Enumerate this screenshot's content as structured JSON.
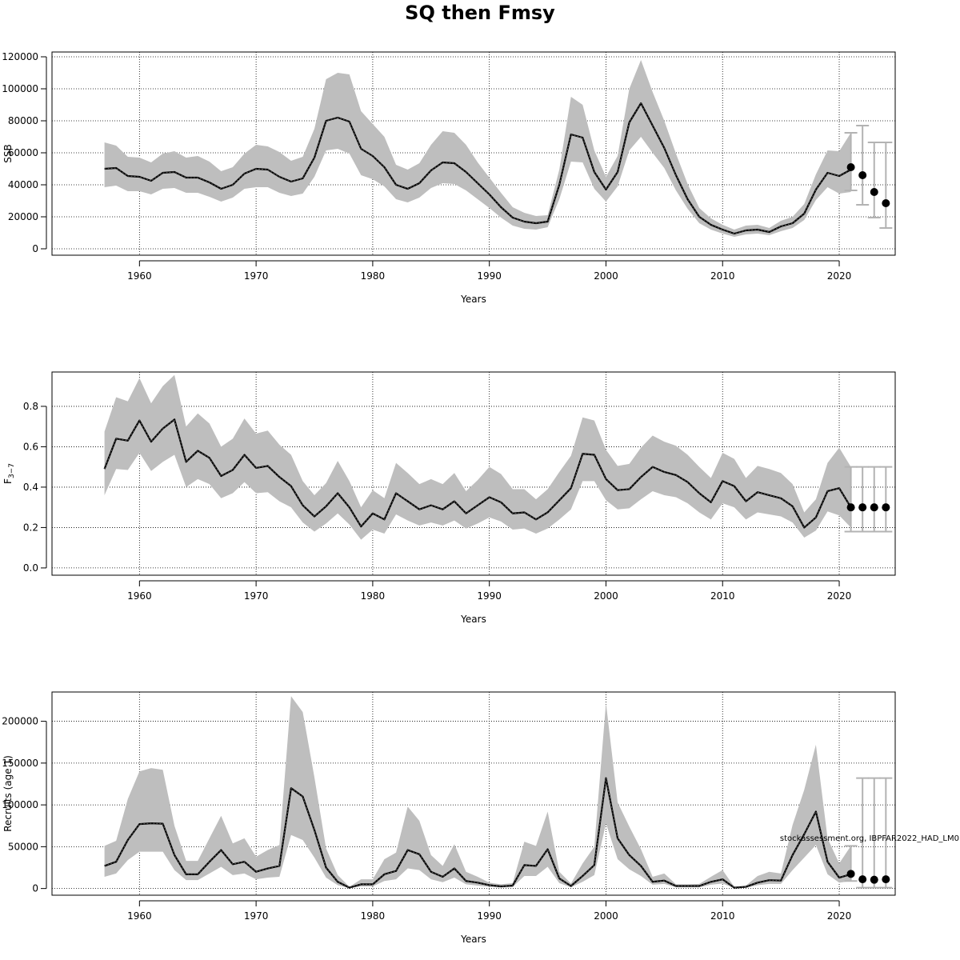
{
  "title": "SQ then Fmsy",
  "credit": "stockassessment.org, IBPFAR2022_HAD_LM0",
  "colors": {
    "band": "#bebebe",
    "line": "#000000",
    "grid": "#000000",
    "errorbar": "#b3b3b3",
    "point": "#000000"
  },
  "chart_data": [
    {
      "type": "line",
      "title": "",
      "xlabel": "Years",
      "ylabel": "SSB",
      "xlim": [
        1952.5,
        2024.8
      ],
      "ylim": [
        -4000,
        123000
      ],
      "x_ticks": [
        1960,
        1970,
        1980,
        1990,
        2000,
        2010,
        2020
      ],
      "y_ticks": [
        0,
        20000,
        40000,
        60000,
        80000,
        100000,
        120000
      ],
      "y_tick_labels": [
        "0",
        "20000",
        "40000",
        "60000",
        "80000",
        "100000",
        "120000"
      ],
      "grid": true,
      "years": [
        1957,
        1958,
        1959,
        1960,
        1961,
        1962,
        1963,
        1964,
        1965,
        1966,
        1967,
        1968,
        1969,
        1970,
        1971,
        1972,
        1973,
        1974,
        1975,
        1976,
        1977,
        1978,
        1979,
        1980,
        1981,
        1982,
        1983,
        1984,
        1985,
        1986,
        1987,
        1988,
        1989,
        1990,
        1991,
        1992,
        1993,
        1994,
        1995,
        1996,
        1997,
        1998,
        1999,
        2000,
        2001,
        2002,
        2003,
        2004,
        2005,
        2006,
        2007,
        2008,
        2009,
        2010,
        2011,
        2012,
        2013,
        2014,
        2015,
        2016,
        2017,
        2018,
        2019,
        2020,
        2021
      ],
      "estimate": [
        50000,
        50500,
        45500,
        45000,
        42500,
        47500,
        48000,
        44500,
        44500,
        41500,
        37500,
        40000,
        47000,
        50000,
        49500,
        45000,
        42000,
        44000,
        57000,
        80000,
        82000,
        79500,
        62500,
        58000,
        51000,
        40000,
        37500,
        41000,
        49000,
        54000,
        53500,
        48000,
        41000,
        34000,
        26000,
        19500,
        17000,
        16000,
        17000,
        40000,
        71500,
        69500,
        48000,
        37000,
        48000,
        79000,
        91000,
        77000,
        63000,
        46000,
        31000,
        20000,
        15000,
        12000,
        9500,
        11500,
        12000,
        10500,
        14000,
        16000,
        22000,
        37000,
        47500,
        45500,
        49500
      ],
      "lower": [
        38500,
        39500,
        36000,
        36000,
        34000,
        37500,
        38000,
        35000,
        35000,
        32500,
        29500,
        32000,
        37500,
        38500,
        38500,
        35000,
        33000,
        34500,
        45000,
        61500,
        62500,
        59500,
        46000,
        43500,
        39000,
        31000,
        29000,
        32000,
        38000,
        41000,
        40500,
        36500,
        31000,
        25500,
        19500,
        14500,
        12500,
        12000,
        13500,
        31000,
        54500,
        54000,
        37500,
        29500,
        39000,
        61500,
        70000,
        60000,
        50500,
        36500,
        25000,
        16000,
        12000,
        9500,
        7500,
        9000,
        9500,
        8500,
        11000,
        13000,
        18000,
        30500,
        38500,
        34500,
        35500
      ],
      "upper": [
        66500,
        64500,
        57500,
        57000,
        54000,
        59500,
        61000,
        57000,
        58000,
        54500,
        48500,
        51000,
        59500,
        65000,
        64000,
        60500,
        55000,
        57500,
        75000,
        106000,
        110000,
        109000,
        86000,
        78000,
        70000,
        52500,
        49500,
        53500,
        65000,
        73500,
        72500,
        65000,
        54000,
        44500,
        35000,
        26000,
        22500,
        20500,
        21000,
        49500,
        95000,
        90000,
        61500,
        45000,
        58000,
        100000,
        118000,
        98000,
        80000,
        59500,
        40500,
        25500,
        19000,
        15000,
        12000,
        14500,
        15000,
        13000,
        17500,
        20000,
        28000,
        46500,
        61500,
        61000,
        72500
      ],
      "forecast": {
        "years": [
          2021,
          2022,
          2023,
          2024
        ],
        "median": [
          51000,
          46000,
          35500,
          28500
        ],
        "low": [
          36500,
          27500,
          19500,
          13000
        ],
        "high": [
          72500,
          77000,
          66500,
          66500
        ]
      }
    },
    {
      "type": "line",
      "title": "",
      "xlabel": "Years",
      "ylabel": "F3−7",
      "ylabel_base": "F",
      "ylabel_subscript": "3−7",
      "xlim": [
        1952.5,
        2024.8
      ],
      "ylim": [
        -0.036,
        0.97
      ],
      "x_ticks": [
        1960,
        1970,
        1980,
        1990,
        2000,
        2010,
        2020
      ],
      "y_ticks": [
        0,
        0.2,
        0.4,
        0.6,
        0.8
      ],
      "y_tick_labels": [
        "0.0",
        "0.2",
        "0.4",
        "0.6",
        "0.8"
      ],
      "grid": true,
      "years": [
        1957,
        1958,
        1959,
        1960,
        1961,
        1962,
        1963,
        1964,
        1965,
        1966,
        1967,
        1968,
        1969,
        1970,
        1971,
        1972,
        1973,
        1974,
        1975,
        1976,
        1977,
        1978,
        1979,
        1980,
        1981,
        1982,
        1983,
        1984,
        1985,
        1986,
        1987,
        1988,
        1989,
        1990,
        1991,
        1992,
        1993,
        1994,
        1995,
        1996,
        1997,
        1998,
        1999,
        2000,
        2001,
        2002,
        2003,
        2004,
        2005,
        2006,
        2007,
        2008,
        2009,
        2010,
        2011,
        2012,
        2013,
        2014,
        2015,
        2016,
        2017,
        2018,
        2019,
        2020,
        2021
      ],
      "estimate": [
        0.49,
        0.64,
        0.63,
        0.73,
        0.625,
        0.69,
        0.735,
        0.525,
        0.58,
        0.545,
        0.455,
        0.485,
        0.56,
        0.495,
        0.505,
        0.45,
        0.405,
        0.31,
        0.255,
        0.305,
        0.37,
        0.3,
        0.205,
        0.27,
        0.24,
        0.37,
        0.33,
        0.29,
        0.31,
        0.29,
        0.33,
        0.27,
        0.31,
        0.35,
        0.325,
        0.27,
        0.275,
        0.24,
        0.275,
        0.335,
        0.395,
        0.565,
        0.56,
        0.44,
        0.385,
        0.39,
        0.45,
        0.5,
        0.475,
        0.46,
        0.425,
        0.37,
        0.325,
        0.43,
        0.405,
        0.33,
        0.375,
        0.36,
        0.345,
        0.305,
        0.2,
        0.25,
        0.38,
        0.395,
        0.3
      ],
      "lower": [
        0.36,
        0.49,
        0.485,
        0.57,
        0.48,
        0.525,
        0.56,
        0.4,
        0.44,
        0.415,
        0.345,
        0.37,
        0.425,
        0.37,
        0.375,
        0.33,
        0.3,
        0.225,
        0.18,
        0.22,
        0.27,
        0.215,
        0.14,
        0.19,
        0.17,
        0.265,
        0.235,
        0.21,
        0.225,
        0.21,
        0.235,
        0.195,
        0.22,
        0.25,
        0.23,
        0.19,
        0.195,
        0.17,
        0.195,
        0.24,
        0.29,
        0.43,
        0.43,
        0.335,
        0.29,
        0.295,
        0.34,
        0.38,
        0.36,
        0.35,
        0.32,
        0.275,
        0.24,
        0.32,
        0.3,
        0.24,
        0.275,
        0.265,
        0.255,
        0.225,
        0.15,
        0.185,
        0.28,
        0.26,
        0.2
      ],
      "upper": [
        0.675,
        0.845,
        0.825,
        0.94,
        0.815,
        0.9,
        0.955,
        0.7,
        0.765,
        0.715,
        0.6,
        0.64,
        0.74,
        0.665,
        0.68,
        0.61,
        0.56,
        0.43,
        0.36,
        0.42,
        0.53,
        0.43,
        0.3,
        0.385,
        0.345,
        0.52,
        0.47,
        0.415,
        0.44,
        0.415,
        0.47,
        0.38,
        0.435,
        0.5,
        0.465,
        0.39,
        0.39,
        0.34,
        0.39,
        0.475,
        0.555,
        0.745,
        0.73,
        0.585,
        0.505,
        0.515,
        0.595,
        0.655,
        0.625,
        0.605,
        0.56,
        0.5,
        0.445,
        0.57,
        0.54,
        0.445,
        0.505,
        0.49,
        0.47,
        0.415,
        0.275,
        0.34,
        0.52,
        0.595,
        0.5
      ],
      "forecast": {
        "years": [
          2021,
          2022,
          2023,
          2024
        ],
        "median": [
          0.3,
          0.3,
          0.3,
          0.3
        ],
        "low": [
          0.18,
          0.18,
          0.18,
          0.18
        ],
        "high": [
          0.5,
          0.5,
          0.5,
          0.5
        ]
      }
    },
    {
      "type": "line",
      "title": "",
      "xlabel": "Years",
      "ylabel": "Recruits (age 1)",
      "xlim": [
        1952.5,
        2024.8
      ],
      "ylim": [
        -8000,
        235000
      ],
      "x_ticks": [
        1960,
        1970,
        1980,
        1990,
        2000,
        2010,
        2020
      ],
      "y_ticks": [
        0,
        50000,
        100000,
        150000,
        200000
      ],
      "y_tick_labels": [
        "0",
        "50000",
        "100000",
        "150000",
        "200000"
      ],
      "grid": true,
      "years": [
        1957,
        1958,
        1959,
        1960,
        1961,
        1962,
        1963,
        1964,
        1965,
        1966,
        1967,
        1968,
        1969,
        1970,
        1971,
        1972,
        1973,
        1974,
        1975,
        1976,
        1977,
        1978,
        1979,
        1980,
        1981,
        1982,
        1983,
        1984,
        1985,
        1986,
        1987,
        1988,
        1989,
        1990,
        1991,
        1992,
        1993,
        1994,
        1995,
        1996,
        1997,
        1998,
        1999,
        2000,
        2001,
        2002,
        2003,
        2004,
        2005,
        2006,
        2007,
        2008,
        2009,
        2010,
        2011,
        2012,
        2013,
        2014,
        2015,
        2016,
        2017,
        2018,
        2019,
        2020,
        2021
      ],
      "estimate": [
        27000,
        32000,
        58000,
        77000,
        78000,
        77500,
        40000,
        17000,
        17000,
        32000,
        46000,
        29000,
        32000,
        20000,
        24000,
        27000,
        120000,
        110000,
        70000,
        25000,
        8000,
        1000,
        5000,
        5000,
        17000,
        21000,
        46000,
        41000,
        20000,
        14000,
        24000,
        9000,
        7000,
        4000,
        2500,
        3500,
        28000,
        27000,
        47000,
        12000,
        3000,
        15000,
        28000,
        132000,
        60000,
        40000,
        27000,
        8000,
        9500,
        3000,
        3000,
        3000,
        8000,
        11000,
        1000,
        2000,
        7000,
        10000,
        9500,
        40000,
        65000,
        92000,
        32000,
        13000,
        17000
      ],
      "lower": [
        14000,
        18000,
        34000,
        44000,
        44000,
        44000,
        22000,
        10000,
        10000,
        18000,
        26000,
        16000,
        18000,
        11000,
        13000,
        14000,
        64000,
        58000,
        37000,
        13000,
        4000,
        500,
        2500,
        2500,
        9000,
        11000,
        24000,
        22000,
        11000,
        7500,
        13000,
        5000,
        3500,
        2000,
        1200,
        1800,
        15000,
        15000,
        26000,
        6500,
        1500,
        8000,
        16000,
        78000,
        35000,
        23000,
        15000,
        4500,
        5500,
        1500,
        1500,
        1500,
        4500,
        6000,
        500,
        1000,
        4000,
        5500,
        5500,
        22000,
        37000,
        52000,
        17000,
        7000,
        9000
      ],
      "upper": [
        51000,
        57000,
        107000,
        140000,
        144000,
        142000,
        75000,
        33000,
        33000,
        60000,
        87000,
        54000,
        60000,
        38000,
        46000,
        52000,
        230000,
        211000,
        133000,
        48000,
        16000,
        2000,
        11000,
        11000,
        35000,
        43000,
        98000,
        81000,
        40000,
        27000,
        53000,
        20000,
        14000,
        7000,
        5000,
        6500,
        56000,
        51000,
        92000,
        20000,
        6000,
        30000,
        50000,
        222000,
        103000,
        74000,
        47000,
        14000,
        18000,
        5000,
        5000,
        5500,
        14000,
        22000,
        2000,
        3500,
        15000,
        20000,
        18000,
        76000,
        118000,
        172000,
        60000,
        30000,
        51000
      ],
      "forecast": {
        "years": [
          2021,
          2022,
          2023,
          2024
        ],
        "median": [
          17500,
          11000,
          10500,
          11000
        ],
        "low": [
          9000,
          1000,
          1000,
          1000
        ],
        "high": [
          51000,
          132000,
          132000,
          132000
        ]
      }
    }
  ]
}
